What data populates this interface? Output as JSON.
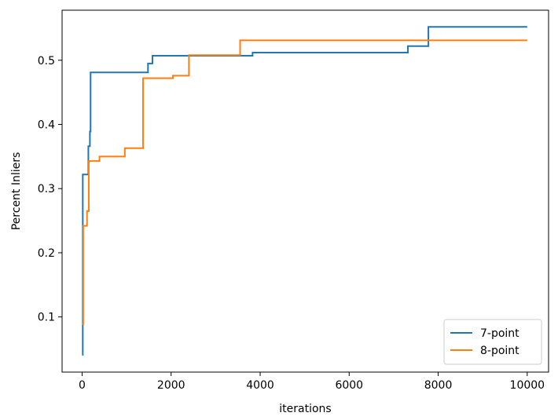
{
  "chart_data": {
    "type": "line",
    "xlabel": "iterations",
    "ylabel": "Percent Inliers",
    "xlim": [
      -450,
      10480
    ],
    "ylim": [
      0.014,
      0.578
    ],
    "xticks": [
      0,
      2000,
      4000,
      6000,
      8000,
      10000
    ],
    "yticks": [
      0.1,
      0.2,
      0.3,
      0.4,
      0.5
    ],
    "xtick_labels": [
      "0",
      "2000",
      "4000",
      "6000",
      "8000",
      "10000"
    ],
    "ytick_labels": [
      "0.1",
      "0.2",
      "0.3",
      "0.4",
      "0.5"
    ],
    "legend_position": "lower-right",
    "grid": false,
    "series": [
      {
        "name": "7-point",
        "color": "#1f77b4",
        "step": "post",
        "x": [
          0,
          15,
          100,
          140,
          175,
          190,
          1480,
          1580,
          3830,
          7320,
          7780,
          10000
        ],
        "y": [
          0.041,
          0.322,
          0.322,
          0.366,
          0.389,
          0.481,
          0.495,
          0.507,
          0.512,
          0.522,
          0.552,
          0.552
        ]
      },
      {
        "name": "8-point",
        "color": "#ff7f0e",
        "step": "post",
        "x": [
          0,
          25,
          110,
          150,
          390,
          960,
          1370,
          2040,
          2400,
          3550,
          10000
        ],
        "y": [
          0.089,
          0.242,
          0.265,
          0.343,
          0.35,
          0.363,
          0.472,
          0.476,
          0.508,
          0.531,
          0.531
        ]
      }
    ]
  }
}
